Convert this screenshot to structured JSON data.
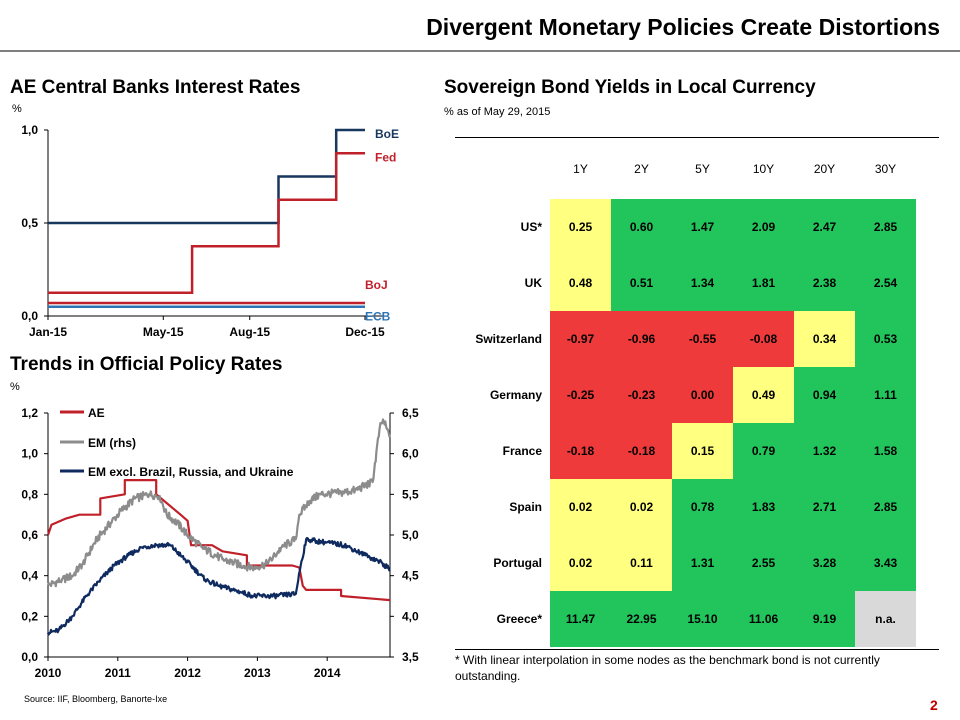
{
  "title": "Divergent Monetary Policies Create Distortions",
  "colors": {
    "boe": "#17375e",
    "fed": "#c0202a",
    "boj": "#c0202a",
    "ecb": "#2e75b6",
    "green": "#22c55b",
    "yellow": "#ffff80",
    "red": "#ee3a3a",
    "na": "#d9d9d9",
    "page_number": "#c00000"
  },
  "chart_data": [
    {
      "type": "line",
      "title": "AE Central Banks Interest Rates",
      "ylabel": "%",
      "ylim": [
        0,
        1
      ],
      "yticks": [
        "1,0",
        "0,5",
        "0,0"
      ],
      "xticks": [
        "Jan-15",
        "May-15",
        "Aug-15",
        "Dec-15"
      ],
      "series": [
        {
          "name": "BoE",
          "color": "#17375e",
          "points": [
            [
              "Jan-15",
              0.5
            ],
            [
              "Sep-15",
              0.5
            ],
            [
              "Sep-15",
              0.75
            ],
            [
              "Nov-15",
              0.75
            ],
            [
              "Nov-15",
              1.0
            ],
            [
              "Dec-15",
              1.0
            ]
          ]
        },
        {
          "name": "Fed",
          "color": "#c0202a",
          "points": [
            [
              "Jan-15",
              0.125
            ],
            [
              "Jun-15",
              0.125
            ],
            [
              "Jun-15",
              0.375
            ],
            [
              "Sep-15",
              0.375
            ],
            [
              "Sep-15",
              0.625
            ],
            [
              "Nov-15",
              0.625
            ],
            [
              "Nov-15",
              0.875
            ],
            [
              "Dec-15",
              0.875
            ]
          ]
        },
        {
          "name": "BoJ",
          "color": "#c0202a",
          "points": [
            [
              "Jan-15",
              0.07
            ],
            [
              "Dec-15",
              0.07
            ]
          ]
        },
        {
          "name": "ECB",
          "color": "#2e75b6",
          "points": [
            [
              "Jan-15",
              0.05
            ],
            [
              "Dec-15",
              0.05
            ]
          ]
        }
      ]
    },
    {
      "type": "line",
      "title": "Trends in Official Policy Rates",
      "ylabel": "%",
      "ylim": [
        0,
        1.2
      ],
      "y2lim": [
        3.5,
        6.5
      ],
      "yticks": [
        "1,2",
        "1,0",
        "0,8",
        "0,6",
        "0,4",
        "0,2",
        "0,0"
      ],
      "y2ticks": [
        "6,5",
        "6,0",
        "5,5",
        "5,0",
        "4,5",
        "4,0",
        "3,5"
      ],
      "xticks": [
        "2010",
        "2011",
        "2012",
        "2013",
        "2014"
      ],
      "xlim": [
        2010.0,
        2014.9
      ],
      "legend": "top-left",
      "series": [
        {
          "name": "AE",
          "axis": "left",
          "color": "#c0202a",
          "points": [
            [
              2010.0,
              0.6
            ],
            [
              2010.05,
              0.65
            ],
            [
              2010.25,
              0.68
            ],
            [
              2010.45,
              0.7
            ],
            [
              2010.75,
              0.7
            ],
            [
              2010.75,
              0.78
            ],
            [
              2011.1,
              0.8
            ],
            [
              2011.1,
              0.87
            ],
            [
              2011.55,
              0.87
            ],
            [
              2011.55,
              0.8
            ],
            [
              2011.9,
              0.7
            ],
            [
              2012.0,
              0.67
            ],
            [
              2012.05,
              0.55
            ],
            [
              2012.35,
              0.55
            ],
            [
              2012.5,
              0.52
            ],
            [
              2012.85,
              0.5
            ],
            [
              2012.85,
              0.45
            ],
            [
              2013.5,
              0.45
            ],
            [
              2013.6,
              0.44
            ],
            [
              2013.65,
              0.35
            ],
            [
              2013.7,
              0.33
            ],
            [
              2014.2,
              0.33
            ],
            [
              2014.2,
              0.3
            ],
            [
              2014.9,
              0.28
            ]
          ]
        },
        {
          "name": "EM (rhs)",
          "axis": "right",
          "color": "#8c8c8c",
          "points": [
            [
              2010.0,
              4.38
            ],
            [
              2010.2,
              4.45
            ],
            [
              2010.35,
              4.5
            ],
            [
              2010.5,
              4.65
            ],
            [
              2010.7,
              4.95
            ],
            [
              2010.9,
              5.15
            ],
            [
              2011.05,
              5.3
            ],
            [
              2011.25,
              5.45
            ],
            [
              2011.45,
              5.5
            ],
            [
              2011.6,
              5.48
            ],
            [
              2011.7,
              5.25
            ],
            [
              2011.85,
              5.15
            ],
            [
              2012.0,
              5.0
            ],
            [
              2012.2,
              4.85
            ],
            [
              2012.5,
              4.7
            ],
            [
              2012.8,
              4.62
            ],
            [
              2012.95,
              4.6
            ],
            [
              2013.15,
              4.65
            ],
            [
              2013.35,
              4.85
            ],
            [
              2013.55,
              4.95
            ],
            [
              2013.6,
              5.25
            ],
            [
              2013.75,
              5.42
            ],
            [
              2013.9,
              5.5
            ],
            [
              2014.2,
              5.52
            ],
            [
              2014.4,
              5.55
            ],
            [
              2014.65,
              5.65
            ],
            [
              2014.75,
              6.3
            ],
            [
              2014.8,
              6.42
            ],
            [
              2014.9,
              6.2
            ]
          ]
        },
        {
          "name": "EM excl. Brazil, Russia, and Ukraine",
          "axis": "left",
          "color": "#0f2a5f",
          "points": [
            [
              2010.0,
              0.12
            ],
            [
              2010.15,
              0.13
            ],
            [
              2010.35,
              0.2
            ],
            [
              2010.55,
              0.3
            ],
            [
              2010.75,
              0.38
            ],
            [
              2010.95,
              0.45
            ],
            [
              2011.15,
              0.5
            ],
            [
              2011.35,
              0.54
            ],
            [
              2011.55,
              0.55
            ],
            [
              2011.75,
              0.55
            ],
            [
              2011.9,
              0.5
            ],
            [
              2012.05,
              0.45
            ],
            [
              2012.25,
              0.38
            ],
            [
              2012.45,
              0.35
            ],
            [
              2012.75,
              0.32
            ],
            [
              2012.95,
              0.3
            ],
            [
              2013.25,
              0.3
            ],
            [
              2013.55,
              0.31
            ],
            [
              2013.62,
              0.45
            ],
            [
              2013.7,
              0.58
            ],
            [
              2013.85,
              0.57
            ],
            [
              2014.25,
              0.55
            ],
            [
              2014.55,
              0.5
            ],
            [
              2014.75,
              0.47
            ],
            [
              2014.9,
              0.43
            ]
          ]
        }
      ]
    },
    {
      "type": "table",
      "title": "Sovereign Bond Yields in Local Currency",
      "subtitle": "% as of May 29, 2015",
      "columns": [
        "1Y",
        "2Y",
        "5Y",
        "10Y",
        "20Y",
        "30Y"
      ],
      "rows": [
        {
          "country": "US*",
          "values": [
            "0.25",
            "0.60",
            "1.47",
            "2.09",
            "2.47",
            "2.85"
          ],
          "colors": [
            "y",
            "g",
            "g",
            "g",
            "g",
            "g"
          ]
        },
        {
          "country": "UK",
          "values": [
            "0.48",
            "0.51",
            "1.34",
            "1.81",
            "2.38",
            "2.54"
          ],
          "colors": [
            "y",
            "g",
            "g",
            "g",
            "g",
            "g"
          ]
        },
        {
          "country": "Switzerland",
          "values": [
            "-0.97",
            "-0.96",
            "-0.55",
            "-0.08",
            "0.34",
            "0.53"
          ],
          "colors": [
            "r",
            "r",
            "r",
            "r",
            "y",
            "g"
          ]
        },
        {
          "country": "Germany",
          "values": [
            "-0.25",
            "-0.23",
            "0.00",
            "0.49",
            "0.94",
            "1.11"
          ],
          "colors": [
            "r",
            "r",
            "r",
            "y",
            "g",
            "g"
          ]
        },
        {
          "country": "France",
          "values": [
            "-0.18",
            "-0.18",
            "0.15",
            "0.79",
            "1.32",
            "1.58"
          ],
          "colors": [
            "r",
            "r",
            "y",
            "g",
            "g",
            "g"
          ]
        },
        {
          "country": "Spain",
          "values": [
            "0.02",
            "0.02",
            "0.78",
            "1.83",
            "2.71",
            "2.85"
          ],
          "colors": [
            "y",
            "y",
            "g",
            "g",
            "g",
            "g"
          ]
        },
        {
          "country": "Portugal",
          "values": [
            "0.02",
            "0.11",
            "1.31",
            "2.55",
            "3.28",
            "3.43"
          ],
          "colors": [
            "y",
            "y",
            "g",
            "g",
            "g",
            "g"
          ]
        },
        {
          "country": "Greece*",
          "values": [
            "11.47",
            "22.95",
            "15.10",
            "11.06",
            "9.19",
            "n.a."
          ],
          "colors": [
            "g",
            "g",
            "g",
            "g",
            "g",
            "n"
          ]
        }
      ]
    }
  ],
  "footnote": "* With linear interpolation in some nodes as the benchmark bond is not currently outstanding.",
  "source": "Source: IIF, Bloomberg, Banorte-Ixe",
  "page_number": "2"
}
